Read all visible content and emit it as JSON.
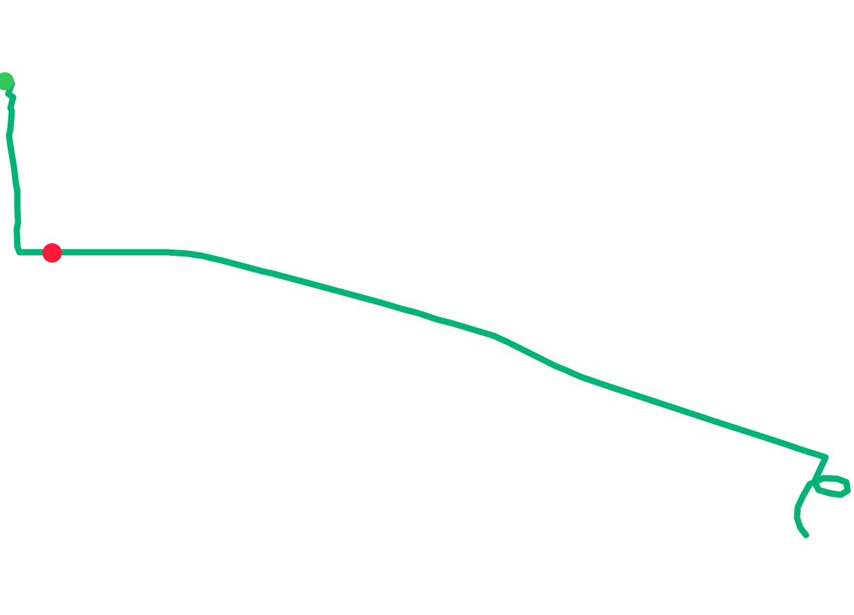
{
  "route": {
    "line_color": "#00b574",
    "start_marker_color": "#34c759",
    "current_marker_color": "#ff1a3a"
  }
}
